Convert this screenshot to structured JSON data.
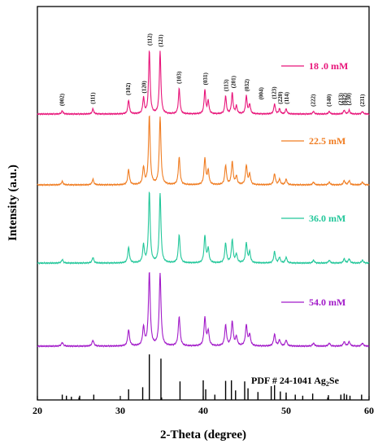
{
  "chart_data": {
    "type": "line",
    "xlabel": "2-Theta (degree)",
    "ylabel": "Intensity (a.u.)",
    "xlim": [
      20,
      60
    ],
    "x_ticks": [
      "20",
      "30",
      "40",
      "50",
      "60"
    ],
    "series": [
      {
        "name": "18 .0 mM",
        "color": "#e8157a"
      },
      {
        "name": "22.5 mM",
        "color": "#f07d22"
      },
      {
        "name": "36.0 mM",
        "color": "#22c79a"
      },
      {
        "name": "54.0 mM",
        "color": "#a21ac9"
      }
    ],
    "peaks": [
      {
        "x": 23.0,
        "h": 0.05
      },
      {
        "x": 26.7,
        "h": 0.08
      },
      {
        "x": 31.0,
        "h": 0.22
      },
      {
        "x": 32.8,
        "h": 0.25
      },
      {
        "x": 33.5,
        "h": 1.0
      },
      {
        "x": 34.8,
        "h": 0.98
      },
      {
        "x": 37.1,
        "h": 0.4
      },
      {
        "x": 40.2,
        "h": 0.38
      },
      {
        "x": 40.6,
        "h": 0.2
      },
      {
        "x": 42.7,
        "h": 0.28
      },
      {
        "x": 43.5,
        "h": 0.33
      },
      {
        "x": 44.0,
        "h": 0.12
      },
      {
        "x": 45.2,
        "h": 0.28
      },
      {
        "x": 45.6,
        "h": 0.15
      },
      {
        "x": 48.6,
        "h": 0.16
      },
      {
        "x": 49.2,
        "h": 0.08
      },
      {
        "x": 50.0,
        "h": 0.08
      },
      {
        "x": 53.3,
        "h": 0.04
      },
      {
        "x": 55.2,
        "h": 0.04
      },
      {
        "x": 57.0,
        "h": 0.06
      },
      {
        "x": 57.6,
        "h": 0.06
      },
      {
        "x": 59.2,
        "h": 0.04
      }
    ],
    "peak_labels": [
      {
        "text": "(002)",
        "x": 23.0
      },
      {
        "text": "(111)",
        "x": 26.7
      },
      {
        "text": "(102)",
        "x": 31.0
      },
      {
        "text": "(120)",
        "x": 32.9
      },
      {
        "text": "(112)",
        "x": 33.6
      },
      {
        "text": "(121)",
        "x": 34.9
      },
      {
        "text": "(103)",
        "x": 37.1
      },
      {
        "text": "(031)",
        "x": 40.3
      },
      {
        "text": "(113)",
        "x": 42.8
      },
      {
        "text": "(201)",
        "x": 43.7
      },
      {
        "text": "(032)",
        "x": 45.3
      },
      {
        "text": "(004)",
        "x": 47.0
      },
      {
        "text": "(123)",
        "x": 48.6
      },
      {
        "text": "(220)",
        "x": 49.3
      },
      {
        "text": "(114)",
        "x": 50.1
      },
      {
        "text": "(222)",
        "x": 53.3
      },
      {
        "text": "(140)",
        "x": 55.2
      },
      {
        "text": "(213)",
        "x": 56.6
      },
      {
        "text": "(042)",
        "x": 57.1
      },
      {
        "text": "(230)",
        "x": 57.6
      },
      {
        "text": "(231)",
        "x": 59.2
      }
    ],
    "reference": {
      "label": "PDF # 24-1041 Ag",
      "label_sub": "2",
      "label_tail": "Se",
      "sticks": [
        {
          "x": 23.0,
          "h": 0.1
        },
        {
          "x": 23.5,
          "h": 0.08
        },
        {
          "x": 24.1,
          "h": 0.06
        },
        {
          "x": 25.1,
          "h": 0.08
        },
        {
          "x": 26.8,
          "h": 0.1
        },
        {
          "x": 31.0,
          "h": 0.2
        },
        {
          "x": 32.7,
          "h": 0.24
        },
        {
          "x": 33.5,
          "h": 0.86
        },
        {
          "x": 34.9,
          "h": 0.78
        },
        {
          "x": 37.2,
          "h": 0.35
        },
        {
          "x": 40.0,
          "h": 0.37
        },
        {
          "x": 40.3,
          "h": 0.2
        },
        {
          "x": 41.4,
          "h": 0.1
        },
        {
          "x": 42.7,
          "h": 0.36
        },
        {
          "x": 43.4,
          "h": 0.37
        },
        {
          "x": 43.9,
          "h": 0.18
        },
        {
          "x": 45.0,
          "h": 0.35
        },
        {
          "x": 45.4,
          "h": 0.22
        },
        {
          "x": 46.6,
          "h": 0.15
        },
        {
          "x": 48.2,
          "h": 0.26
        },
        {
          "x": 48.6,
          "h": 0.28
        },
        {
          "x": 49.3,
          "h": 0.16
        },
        {
          "x": 50.0,
          "h": 0.14
        },
        {
          "x": 51.1,
          "h": 0.1
        },
        {
          "x": 52.0,
          "h": 0.08
        },
        {
          "x": 53.2,
          "h": 0.12
        },
        {
          "x": 55.1,
          "h": 0.09
        },
        {
          "x": 56.6,
          "h": 0.1
        },
        {
          "x": 57.0,
          "h": 0.12
        },
        {
          "x": 57.3,
          "h": 0.1
        },
        {
          "x": 57.7,
          "h": 0.08
        },
        {
          "x": 59.1,
          "h": 0.1
        }
      ]
    }
  }
}
